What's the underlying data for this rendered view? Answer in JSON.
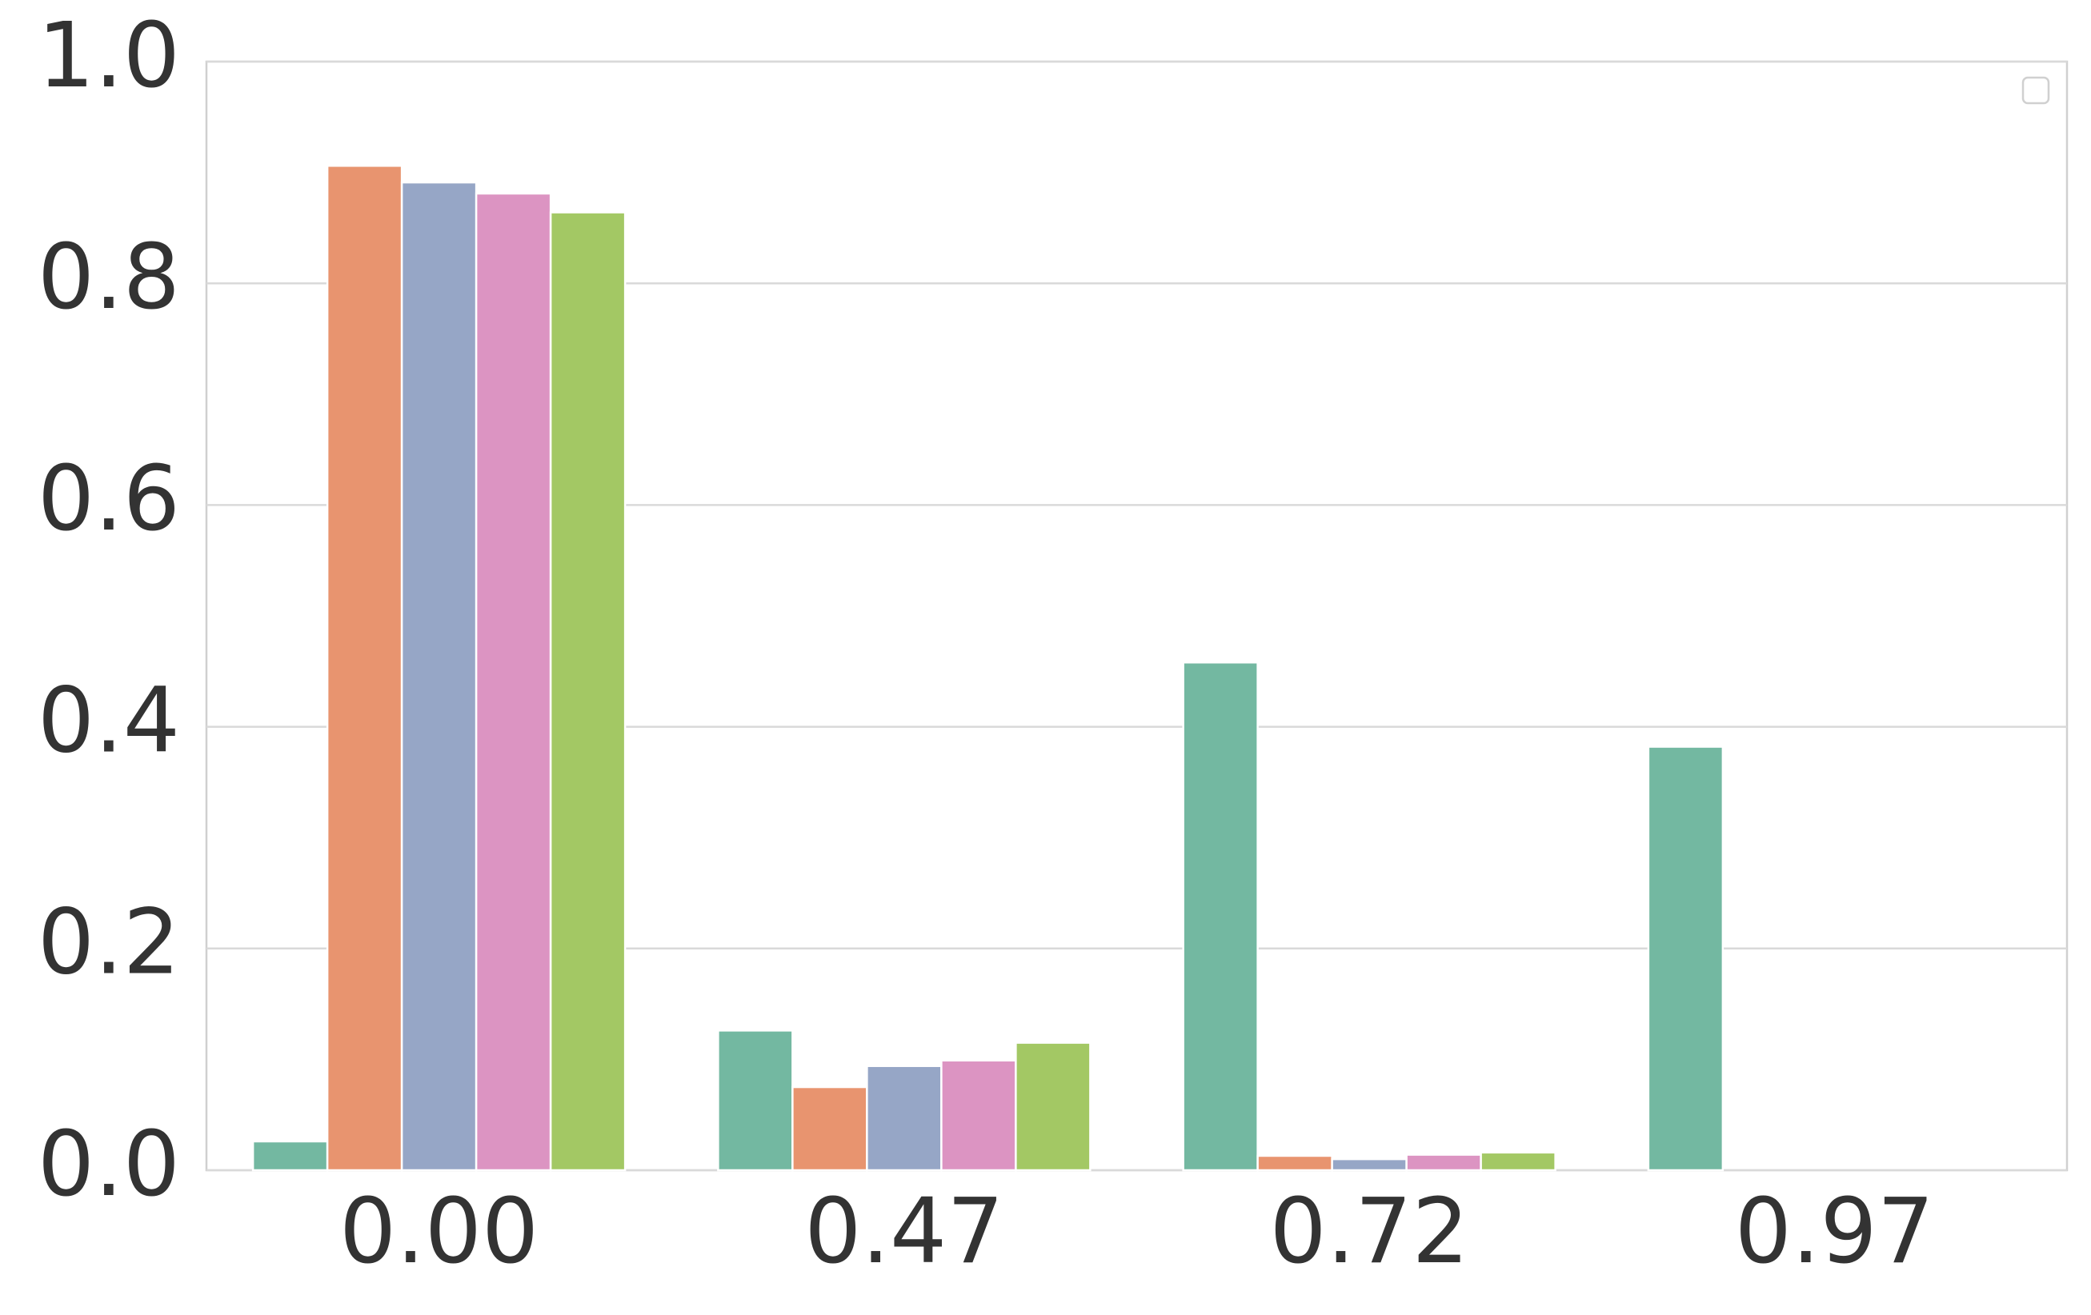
{
  "chart_data": {
    "type": "bar",
    "categories": [
      "0.00",
      "0.47",
      "0.72",
      "0.97"
    ],
    "series": [
      {
        "color": "#73b8a1",
        "values": [
          0.026,
          0.126,
          0.458,
          0.382
        ]
      },
      {
        "color": "#e8946f",
        "values": [
          0.906,
          0.075,
          0.013,
          0
        ]
      },
      {
        "color": "#96a6c6",
        "values": [
          0.891,
          0.094,
          0.01,
          0
        ]
      },
      {
        "color": "#dc94c2",
        "values": [
          0.881,
          0.099,
          0.014,
          0
        ]
      },
      {
        "color": "#a3c864",
        "values": [
          0.864,
          0.115,
          0.016,
          0
        ]
      }
    ],
    "ylim": [
      0,
      1
    ],
    "yticks": [
      {
        "value": 0,
        "label": "0.0"
      },
      0.2,
      0.4,
      0.6,
      0.8,
      {
        "value": 1,
        "label": "1.0"
      }
    ],
    "grid": true
  }
}
